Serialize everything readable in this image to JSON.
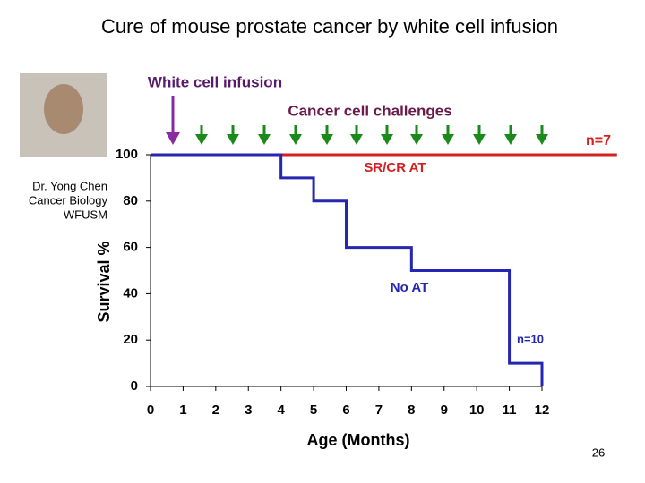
{
  "chart_data": {
    "type": "line",
    "title": "Cure of mouse prostate cancer by white cell infusion",
    "x_label": "Age (Months)",
    "y_label": "Survival %",
    "xlim": [
      0,
      12
    ],
    "ylim": [
      0,
      100
    ],
    "xticks": [
      0,
      1,
      2,
      3,
      4,
      5,
      6,
      7,
      8,
      9,
      10,
      11,
      12
    ],
    "yticks": [
      0,
      20,
      40,
      60,
      80,
      100
    ],
    "series": [
      {
        "name": "SR/CR AT",
        "color": "#d42020",
        "x": [
          0,
          14.3
        ],
        "values": [
          100,
          100
        ],
        "n_label": "n=7"
      },
      {
        "name": "No AT",
        "color": "#2626b0",
        "x": [
          0,
          4,
          4,
          5,
          5,
          6,
          6,
          8,
          8,
          11,
          11,
          12,
          12
        ],
        "values": [
          100,
          100,
          90,
          90,
          80,
          80,
          60,
          60,
          50,
          50,
          10,
          10,
          0
        ],
        "n_label": "n=10"
      }
    ],
    "annotations": {
      "infusion": "White cell infusion",
      "challenges": "Cancer cell challenges"
    }
  },
  "caption": [
    "Dr. Yong Chen",
    "Cancer Biology",
    "WFUSM"
  ],
  "page_number": "26"
}
